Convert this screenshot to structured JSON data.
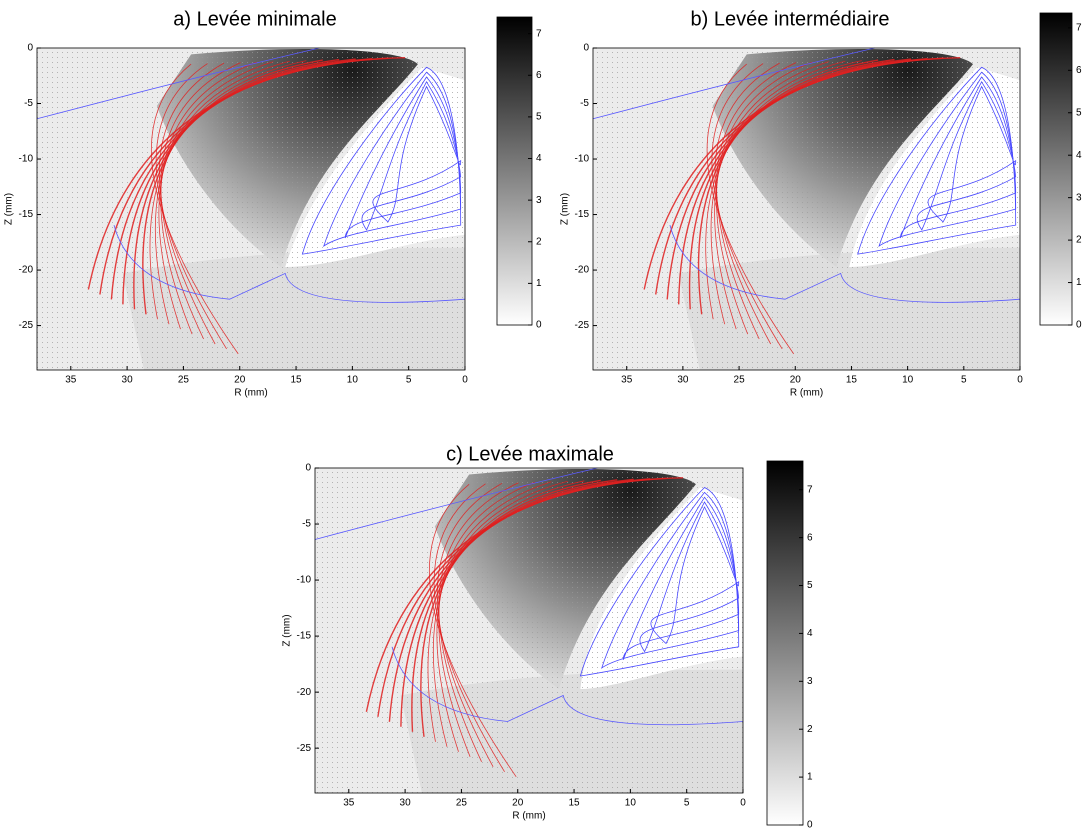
{
  "chart_data": [
    {
      "type": "vector_field",
      "title": "a) Levée minimale",
      "x_label": "R (mm)",
      "y_label": "Z (mm)",
      "xlim": [
        38,
        0
      ],
      "xticks": [
        35,
        30,
        25,
        20,
        15,
        10,
        5,
        0
      ],
      "ylim": [
        -29,
        0
      ],
      "yticks": [
        0,
        -5,
        -10,
        -15,
        -20,
        -25
      ],
      "clim": [
        0,
        7.4
      ],
      "cticks": [
        0,
        1,
        2,
        3,
        4,
        5,
        6,
        7
      ]
    },
    {
      "type": "vector_field",
      "title": "b) Levée intermédiaire",
      "x_label": "R (mm)",
      "y_label": "Z (mm)",
      "xlim": [
        38,
        0
      ],
      "xticks": [
        35,
        30,
        25,
        20,
        15,
        10,
        5,
        0
      ],
      "ylim": [
        -29,
        0
      ],
      "yticks": [
        0,
        -5,
        -10,
        -15,
        -20,
        -25
      ],
      "clim": [
        0,
        7.35
      ],
      "cticks": [
        0,
        1,
        2,
        3,
        4,
        5,
        6,
        7
      ]
    },
    {
      "type": "vector_field",
      "title": "c) Levée maximale",
      "x_label": "R (mm)",
      "y_label": "Z (mm)",
      "xlim": [
        38,
        0
      ],
      "xticks": [
        35,
        30,
        25,
        20,
        15,
        10,
        5,
        0
      ],
      "ylim": [
        -29,
        0
      ],
      "yticks": [
        0,
        -5,
        -10,
        -15,
        -20,
        -25
      ],
      "clim": [
        0,
        7.6
      ],
      "cticks": [
        0,
        1,
        2,
        3,
        4,
        5,
        6,
        7
      ]
    }
  ]
}
